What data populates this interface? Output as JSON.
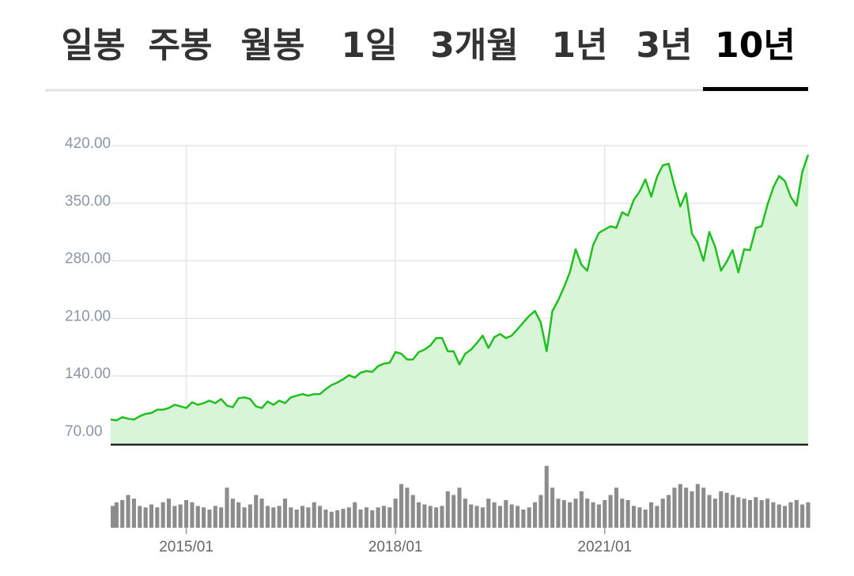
{
  "tabs": [
    "일봉",
    "주봉",
    "월봉",
    "1일",
    "3개월",
    "1년",
    "3년",
    "10년"
  ],
  "active_tab": 7,
  "chart_data": {
    "type": "line",
    "x": [
      "2013/12",
      "2014/01",
      "2014/02",
      "2014/03",
      "2014/04",
      "2014/05",
      "2014/06",
      "2014/07",
      "2014/08",
      "2014/09",
      "2014/10",
      "2014/11",
      "2014/12",
      "2015/01",
      "2015/02",
      "2015/03",
      "2015/04",
      "2015/05",
      "2015/06",
      "2015/07",
      "2015/08",
      "2015/09",
      "2015/10",
      "2015/11",
      "2015/12",
      "2016/01",
      "2016/02",
      "2016/03",
      "2016/04",
      "2016/05",
      "2016/06",
      "2016/07",
      "2016/08",
      "2016/09",
      "2016/10",
      "2016/11",
      "2016/12",
      "2017/01",
      "2017/02",
      "2017/03",
      "2017/04",
      "2017/05",
      "2017/06",
      "2017/07",
      "2017/08",
      "2017/09",
      "2017/10",
      "2017/11",
      "2017/12",
      "2018/01",
      "2018/02",
      "2018/03",
      "2018/04",
      "2018/05",
      "2018/06",
      "2018/07",
      "2018/08",
      "2018/09",
      "2018/10",
      "2018/11",
      "2018/12",
      "2019/01",
      "2019/02",
      "2019/03",
      "2019/04",
      "2019/05",
      "2019/06",
      "2019/07",
      "2019/08",
      "2019/09",
      "2019/10",
      "2019/11",
      "2019/12",
      "2020/01",
      "2020/02",
      "2020/03",
      "2020/04",
      "2020/05",
      "2020/06",
      "2020/07",
      "2020/08",
      "2020/09",
      "2020/10",
      "2020/11",
      "2020/12",
      "2021/01",
      "2021/02",
      "2021/03",
      "2021/04",
      "2021/05",
      "2021/06",
      "2021/07",
      "2021/08",
      "2021/09",
      "2021/10",
      "2021/11",
      "2021/12",
      "2022/01",
      "2022/02",
      "2022/03",
      "2022/04",
      "2022/05",
      "2022/06",
      "2022/07",
      "2022/08",
      "2022/09",
      "2022/10",
      "2022/11",
      "2022/12",
      "2023/01",
      "2023/02",
      "2023/03",
      "2023/04",
      "2023/05",
      "2023/06",
      "2023/07",
      "2023/08",
      "2023/09",
      "2023/10",
      "2023/11",
      "2023/12"
    ],
    "series": [
      {
        "color": "#1fbf1f",
        "fill": "#d8f5d8",
        "values": [
          87,
          86,
          90,
          88,
          87,
          91,
          94,
          95,
          99,
          99,
          101,
          105,
          103,
          101,
          108,
          105,
          107,
          110,
          107,
          112,
          104,
          102,
          113,
          114,
          112,
          103,
          101,
          109,
          105,
          110,
          107,
          114,
          116,
          118,
          116,
          118,
          118,
          124,
          129,
          132,
          136,
          141,
          138,
          144,
          146,
          145,
          152,
          155,
          156,
          169,
          167,
          160,
          160,
          169,
          172,
          177,
          186,
          186,
          170,
          170,
          154,
          167,
          172,
          180,
          189,
          174,
          187,
          191,
          186,
          189,
          197,
          205,
          213,
          219,
          205,
          170,
          219,
          232,
          248,
          266,
          294,
          275,
          268,
          299,
          314,
          318,
          322,
          320,
          339,
          335,
          354,
          364,
          379,
          358,
          382,
          396,
          398,
          371,
          346,
          362,
          313,
          302,
          280,
          315,
          297,
          268,
          279,
          293,
          266,
          294,
          293,
          320,
          322,
          348,
          369,
          383,
          377,
          358,
          347,
          388,
          409
        ]
      }
    ],
    "volume": {
      "color": "#8c8c8c",
      "values": [
        30,
        35,
        38,
        45,
        40,
        30,
        28,
        32,
        28,
        35,
        40,
        30,
        32,
        38,
        35,
        30,
        28,
        25,
        30,
        28,
        55,
        40,
        35,
        28,
        32,
        45,
        40,
        30,
        28,
        30,
        40,
        28,
        25,
        30,
        28,
        35,
        30,
        25,
        22,
        24,
        26,
        28,
        35,
        25,
        28,
        24,
        28,
        30,
        28,
        40,
        60,
        55,
        45,
        35,
        32,
        30,
        28,
        30,
        50,
        45,
        55,
        40,
        32,
        30,
        28,
        40,
        35,
        30,
        38,
        32,
        30,
        25,
        28,
        35,
        45,
        85,
        55,
        40,
        38,
        35,
        40,
        50,
        40,
        35,
        32,
        38,
        45,
        55,
        40,
        38,
        30,
        28,
        25,
        35,
        30,
        40,
        45,
        55,
        60,
        55,
        50,
        60,
        55,
        45,
        40,
        50,
        48,
        45,
        42,
        40,
        38,
        42,
        38,
        40,
        35,
        32,
        30,
        35,
        38,
        32,
        35
      ]
    },
    "xlim": [
      "2013/12",
      "2023/12"
    ],
    "xticks": [
      "2015/01",
      "2018/01",
      "2021/01"
    ],
    "ylim": [
      56.5,
      433.5
    ],
    "yticks": [
      {
        "value": 70,
        "label": "70.00"
      },
      {
        "value": 140,
        "label": "140.00"
      },
      {
        "value": 210,
        "label": "210.00"
      },
      {
        "value": 280,
        "label": "280.00"
      },
      {
        "value": 350,
        "label": "350.00"
      },
      {
        "value": 420,
        "label": "420.00"
      }
    ],
    "y2lim": [
      0,
      100
    ],
    "grid": true
  }
}
